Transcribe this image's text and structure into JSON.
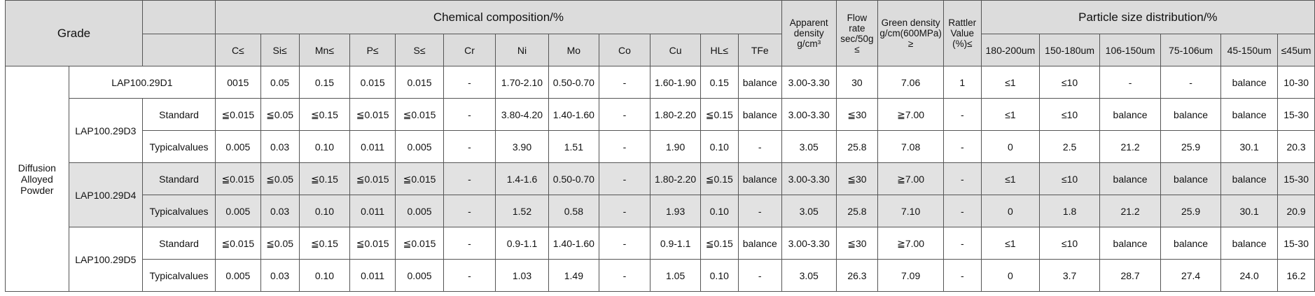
{
  "header": {
    "grade": "Grade",
    "chemical": "Chemical composition/%",
    "chemical_columns": [
      "C≤",
      "Si≤",
      "Mn≤",
      "P≤",
      "S≤",
      "Cr",
      "Ni",
      "Mo",
      "Co",
      "Cu",
      "HL≤",
      "TFe"
    ],
    "apparent_density": "Apparent density g/cm³",
    "flow_rate": "Flow rate sec/50g ≤",
    "green_density": "Green density g/cm(600MPa) ≥",
    "rattler": "Rattler Value (%)≤",
    "particle": "Particle size distribution/%",
    "particle_columns": [
      "180-200um",
      "150-180um",
      "106-150um",
      "75-106um",
      "45-150um",
      "≤45um"
    ]
  },
  "body": {
    "powder": "Diffusion Alloyed Powder",
    "groups": [
      {
        "name": "LAP100.29D1",
        "rows": [
          {
            "values": [
              "0015",
              "0.05",
              "0.15",
              "0.015",
              "0.015",
              "-",
              "1.70-2.10",
              "0.50-0.70",
              "-",
              "1.60-1.90",
              "0.15",
              "balance",
              "3.00-3.30",
              "30",
              "7.06",
              "1",
              "≤1",
              "≤10",
              "-",
              "-",
              "balance",
              "10-30"
            ]
          }
        ]
      },
      {
        "name": "LAP100.29D3",
        "rows": [
          {
            "label": "Standard",
            "values": [
              "≦0.015",
              "≦0.05",
              "≦0.15",
              "≦0.015",
              "≦0.015",
              "-",
              "3.80-4.20",
              "1.40-1.60",
              "-",
              "1.80-2.20",
              "≦0.15",
              "balance",
              "3.00-3.30",
              "≦30",
              "≧7.00",
              "-",
              "≤1",
              "≤10",
              "balance",
              "balance",
              "balance",
              "15-30"
            ]
          },
          {
            "label": "Typicalvalues",
            "values": [
              "0.005",
              "0.03",
              "0.10",
              "0.011",
              "0.005",
              "-",
              "3.90",
              "1.51",
              "-",
              "1.90",
              "0.10",
              "-",
              "3.05",
              "25.8",
              "7.08",
              "-",
              "0",
              "2.5",
              "21.2",
              "25.9",
              "30.1",
              "20.3"
            ]
          }
        ]
      },
      {
        "name": "LAP100.29D4",
        "rows": [
          {
            "label": "Standard",
            "values": [
              "≦0.015",
              "≦0.05",
              "≦0.15",
              "≦0.015",
              "≦0.015",
              "-",
              "1.4-1.6",
              "0.50-0.70",
              "-",
              "1.80-2.20",
              "≦0.15",
              "balance",
              "3.00-3.30",
              "≦30",
              "≧7.00",
              "-",
              "≤1",
              "≤10",
              "balance",
              "balance",
              "balance",
              "15-30"
            ]
          },
          {
            "label": "Typicalvalues",
            "values": [
              "0.005",
              "0.03",
              "0.10",
              "0.011",
              "0.005",
              "-",
              "1.52",
              "0.58",
              "-",
              "1.93",
              "0.10",
              "-",
              "3.05",
              "25.8",
              "7.10",
              "-",
              "0",
              "1.8",
              "21.2",
              "25.9",
              "30.1",
              "20.9"
            ]
          }
        ]
      },
      {
        "name": "LAP100.29D5",
        "rows": [
          {
            "label": "Standard",
            "values": [
              "≦0.015",
              "≦0.05",
              "≦0.15",
              "≦0.015",
              "≦0.015",
              "-",
              "0.9-1.1",
              "1.40-1.60",
              "-",
              "0.9-1.1",
              "≦0.15",
              "balance",
              "3.00-3.30",
              "≦30",
              "≧7.00",
              "-",
              "≤1",
              "≤10",
              "balance",
              "balance",
              "balance",
              "15-30"
            ]
          },
          {
            "label": "Typicalvalues",
            "values": [
              "0.005",
              "0.03",
              "0.10",
              "0.011",
              "0.005",
              "-",
              "1.03",
              "1.49",
              "-",
              "1.05",
              "0.10",
              "-",
              "3.05",
              "26.3",
              "7.09",
              "-",
              "0",
              "3.7",
              "28.7",
              "27.4",
              "24.0",
              "16.2"
            ]
          }
        ]
      }
    ]
  }
}
